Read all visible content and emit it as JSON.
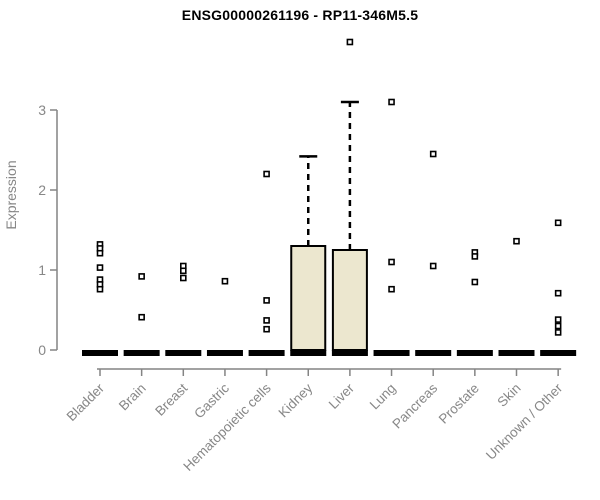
{
  "chart_data": {
    "type": "boxplot",
    "title": "ENSG00000261196 - RP11-346M5.5",
    "ylabel": "Expression",
    "ylim": [
      0,
      3
    ],
    "yticks": [
      0,
      1,
      2,
      3
    ],
    "grid": false,
    "legend": "none",
    "categories": [
      "Bladder",
      "Brain",
      "Breast",
      "Gastric",
      "Hematopoietic cells",
      "Kidney",
      "Liver",
      "Lung",
      "Pancreas",
      "Prostate",
      "Skin",
      "Unknown / Other"
    ],
    "series": [
      {
        "name": "Bladder",
        "q1": 0,
        "median": 0,
        "q3": 0,
        "whisker_low": 0,
        "whisker_high": 0,
        "outliers": [
          1.32,
          1.27,
          1.21,
          1.03,
          0.88,
          0.82,
          0.76
        ]
      },
      {
        "name": "Brain",
        "q1": 0,
        "median": 0,
        "q3": 0,
        "whisker_low": 0,
        "whisker_high": 0,
        "outliers": [
          0.92,
          0.41
        ]
      },
      {
        "name": "Breast",
        "q1": 0,
        "median": 0,
        "q3": 0,
        "whisker_low": 0,
        "whisker_high": 0,
        "outliers": [
          1.05,
          0.99,
          0.9
        ]
      },
      {
        "name": "Gastric",
        "q1": 0,
        "median": 0,
        "q3": 0,
        "whisker_low": 0,
        "whisker_high": 0,
        "outliers": [
          0.86
        ]
      },
      {
        "name": "Hematopoietic cells",
        "q1": 0,
        "median": 0,
        "q3": 0,
        "whisker_low": 0,
        "whisker_high": 0,
        "outliers": [
          2.2,
          0.62,
          0.37,
          0.26
        ]
      },
      {
        "name": "Kidney",
        "q1": 0,
        "median": 0,
        "q3": 1.3,
        "whisker_low": 0,
        "whisker_high": 2.42,
        "outliers": []
      },
      {
        "name": "Liver",
        "q1": 0,
        "median": 0,
        "q3": 1.25,
        "whisker_low": 0,
        "whisker_high": 3.1,
        "outliers": [
          3.85
        ]
      },
      {
        "name": "Lung",
        "q1": 0,
        "median": 0,
        "q3": 0,
        "whisker_low": 0,
        "whisker_high": 0,
        "outliers": [
          3.1,
          1.1,
          0.76
        ]
      },
      {
        "name": "Pancreas",
        "q1": 0,
        "median": 0,
        "q3": 0,
        "whisker_low": 0,
        "whisker_high": 0,
        "outliers": [
          2.45,
          1.05
        ]
      },
      {
        "name": "Prostate",
        "q1": 0,
        "median": 0,
        "q3": 0,
        "whisker_low": 0,
        "whisker_high": 0,
        "outliers": [
          1.22,
          1.17,
          0.85
        ]
      },
      {
        "name": "Skin",
        "q1": 0,
        "median": 0,
        "q3": 0,
        "whisker_low": 0,
        "whisker_high": 0,
        "outliers": [
          1.36
        ]
      },
      {
        "name": "Unknown / Other",
        "q1": 0,
        "median": 0,
        "q3": 0,
        "whisker_low": 0,
        "whisker_high": 0,
        "outliers": [
          1.59,
          0.71,
          0.38,
          0.3,
          0.22
        ]
      }
    ],
    "colors": {
      "box_fill": "#ece7cf",
      "box_border": "#000000",
      "median": "#000000",
      "whisker": "#000000",
      "outlier_stroke": "#000000",
      "outlier_fill": "#ffffff",
      "axis": "#848484",
      "tick_label": "#878787",
      "title": "#000000",
      "background": "#ffffff"
    }
  }
}
